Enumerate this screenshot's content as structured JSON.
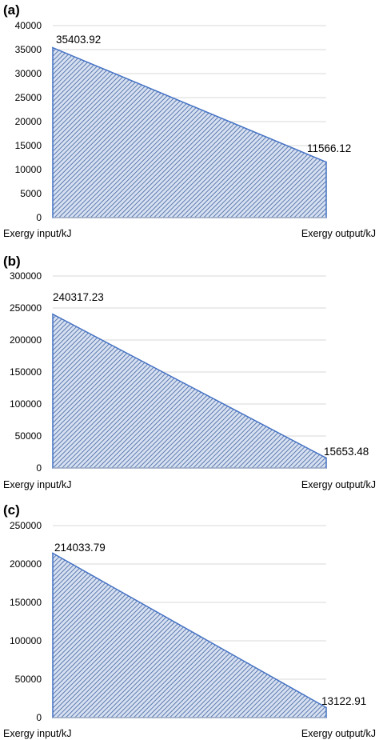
{
  "chart_data": [
    {
      "type": "area",
      "panel_label": "(a)",
      "categories": [
        "Exergy input/kJ",
        "Exergy output/kJ"
      ],
      "values": [
        35403.92,
        11566.12
      ],
      "data_labels": [
        "35403.92",
        "11566.12"
      ],
      "ylim": [
        0,
        40000
      ],
      "yticks": [
        0,
        5000,
        10000,
        15000,
        20000,
        25000,
        30000,
        35000,
        40000
      ],
      "grid": true,
      "fill_color": "#4472c4",
      "fill_pattern": "diagonal-hatch"
    },
    {
      "type": "area",
      "panel_label": "(b)",
      "categories": [
        "Exergy input/kJ",
        "Exergy output/kJ"
      ],
      "values": [
        240317.23,
        15653.48
      ],
      "data_labels": [
        "240317.23",
        "15653.48"
      ],
      "ylim": [
        0,
        300000
      ],
      "yticks": [
        0,
        50000,
        100000,
        150000,
        200000,
        250000,
        300000
      ],
      "grid": true,
      "fill_color": "#4472c4",
      "fill_pattern": "diagonal-hatch"
    },
    {
      "type": "area",
      "panel_label": "(c)",
      "categories": [
        "Exergy input/kJ",
        "Exergy output/kJ"
      ],
      "values": [
        214033.79,
        13122.91
      ],
      "data_labels": [
        "214033.79",
        "13122.91"
      ],
      "ylim": [
        0,
        250000
      ],
      "yticks": [
        0,
        50000,
        100000,
        150000,
        200000,
        250000
      ],
      "grid": true,
      "fill_color": "#4472c4",
      "fill_pattern": "diagonal-hatch"
    }
  ]
}
